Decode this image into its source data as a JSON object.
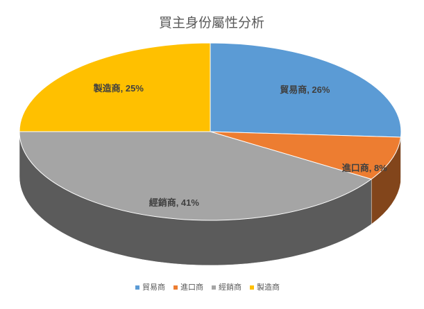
{
  "chart_data": {
    "type": "pie",
    "title": "買主身份屬性分析",
    "categories": [
      "貿易商",
      "進口商",
      "經銷商",
      "製造商"
    ],
    "values": [
      26,
      8,
      41,
      25
    ],
    "value_labels": [
      "貿易商, 26%",
      "進口商, 8%",
      "經銷商, 41%",
      "製造商, 25%"
    ],
    "colors": [
      "#5b9bd5",
      "#ed7d31",
      "#a5a5a5",
      "#ffc000"
    ],
    "legend": "bottom"
  }
}
